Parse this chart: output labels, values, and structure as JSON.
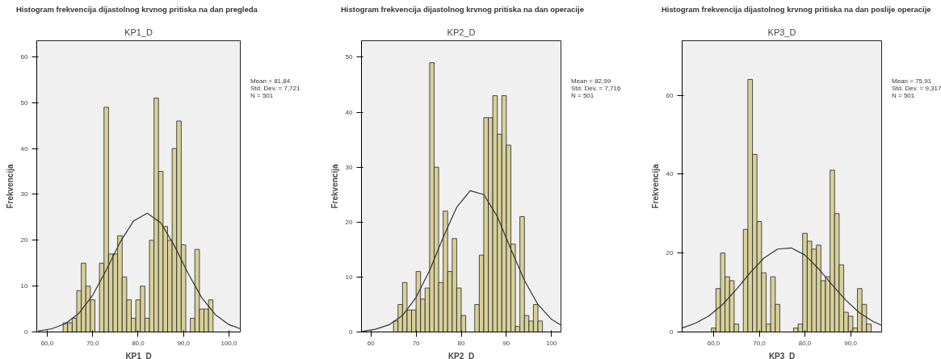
{
  "chart_data": [
    {
      "type": "histogram",
      "title": "Histogram frekvencija dijastolnog krvnog pritiska na dan pregleda",
      "subtitle": "KP1_D",
      "xlabel": "KP1_D",
      "ylabel": "Frekvencija",
      "annotations": [
        "Mean = 81,84",
        "Std. Dev. = 7,721",
        "N = 501"
      ],
      "xlim": [
        57.7,
        102.5
      ],
      "ylim": [
        0,
        63.5
      ],
      "xticks": [
        {
          "value": 60,
          "label": "60,0"
        },
        {
          "value": 70,
          "label": "70,0"
        },
        {
          "value": 80,
          "label": "80,0"
        },
        {
          "value": 90,
          "label": "90,0"
        },
        {
          "value": 100,
          "label": "100,0"
        }
      ],
      "yticks": [
        0,
        10,
        20,
        30,
        40,
        50,
        60
      ],
      "grid": false,
      "series": [
        {
          "color": "#d8d09a",
          "bins": [
            63.5,
            64.5,
            65.5,
            66.5,
            67.5,
            68.5,
            69.5,
            70.5,
            71.5,
            72.5,
            73.5,
            74.5,
            75.5,
            76.5,
            77.5,
            78.5,
            79.5,
            80.5,
            81.5,
            82.5,
            83.5,
            84.5,
            85.5,
            86.5,
            87.5,
            88.5,
            89.5,
            90.5,
            91.5,
            92.5,
            93.5,
            94.5,
            95.5,
            96.5
          ],
          "values": [
            2,
            2,
            3,
            9,
            15,
            10,
            7,
            0,
            15,
            49,
            17,
            17,
            21,
            12,
            7,
            3,
            7,
            10,
            3,
            20,
            51,
            35,
            23,
            20,
            40,
            46,
            19,
            0,
            3,
            18,
            5,
            5,
            7
          ]
        },
        {
          "type": "line",
          "color": "#333333",
          "x": [
            58,
            61,
            64,
            67,
            70,
            73,
            76,
            79,
            82,
            85,
            88,
            91,
            94,
            97,
            100,
            102.5
          ],
          "values": [
            0.2,
            0.7,
            1.8,
            4.1,
            8.0,
            13.5,
            19.5,
            24.2,
            25.9,
            23.8,
            18.8,
            12.8,
            7.5,
            3.8,
            1.6,
            0.7
          ]
        }
      ]
    },
    {
      "type": "histogram",
      "title": "Histogram frekvencija dijastolnog krvnog pritiska na dan operacije",
      "subtitle": "KP2_D",
      "xlabel": "KP2_D",
      "ylabel": "Frekvencija",
      "annotations": [
        "Mean = 82,99",
        "Std. Dev. = 7,716",
        "N = 501"
      ],
      "xlim": [
        57.9,
        102.1
      ],
      "ylim": [
        0,
        53
      ],
      "xticks": [
        60,
        70,
        80,
        90,
        100
      ],
      "yticks": [
        0,
        10,
        20,
        30,
        40,
        50
      ],
      "grid": false,
      "series": [
        {
          "color": "#d8d09a",
          "bins": [
            65,
            66,
            67,
            68,
            69,
            70,
            71,
            72,
            73,
            74,
            75,
            76,
            77,
            78,
            79,
            80,
            81,
            82,
            83,
            84,
            85,
            86,
            87,
            88,
            89,
            90,
            91,
            92,
            93,
            94,
            95,
            96,
            97,
            98
          ],
          "values": [
            2,
            5,
            9,
            4,
            4,
            11,
            6,
            8,
            49,
            30,
            9,
            22,
            11,
            17,
            8,
            3,
            0,
            0,
            5,
            14,
            39,
            39,
            43,
            36,
            43,
            34,
            16,
            1,
            21,
            3,
            2,
            5,
            2
          ]
        },
        {
          "type": "line",
          "color": "#333333",
          "x": [
            58,
            61,
            64,
            67,
            70,
            73,
            76,
            79,
            82,
            85,
            88,
            91,
            94,
            97,
            100,
            102
          ],
          "values": [
            0.1,
            0.5,
            1.3,
            3.0,
            6.3,
            11.2,
            17.2,
            22.7,
            25.7,
            25.0,
            21.0,
            15.1,
            9.4,
            5.0,
            2.3,
            1.3
          ]
        }
      ]
    },
    {
      "type": "histogram",
      "title": "Histogram frekvencija dijastolnog krvnog pritiska na dan poslije operacije",
      "subtitle": "KP3_D",
      "xlabel": "KP3_D",
      "ylabel": "Frekvencija",
      "annotations": [
        "Mean = 75,91",
        "Std. Dev. = 9,317",
        "N = 501"
      ],
      "xlim": [
        53.1,
        96.8
      ],
      "ylim": [
        0,
        73.8
      ],
      "xticks": [
        {
          "value": 60,
          "label": "60,0"
        },
        {
          "value": 70,
          "label": "70,0"
        },
        {
          "value": 80,
          "label": "80,0"
        },
        {
          "value": 90,
          "label": "90,0"
        }
      ],
      "yticks": [
        0,
        20,
        40,
        60
      ],
      "grid": false,
      "series": [
        {
          "color": "#d8d09a",
          "bins": [
            59.5,
            60.5,
            61.5,
            62.5,
            63.5,
            64.5,
            65.5,
            66.5,
            67.5,
            68.5,
            69.5,
            70.5,
            71.5,
            72.5,
            73.5,
            74.5,
            75.5,
            76.5,
            77.5,
            78.5,
            79.5,
            80.5,
            81.5,
            82.5,
            83.5,
            84.5,
            85.5,
            86.5,
            87.5,
            88.5,
            89.5,
            90.5,
            91.5,
            92.5,
            93.5,
            94.5
          ],
          "values": [
            1,
            11,
            20,
            14,
            13,
            2,
            0,
            26,
            64,
            45,
            28,
            15,
            2,
            14,
            7,
            0,
            0,
            0,
            1,
            2,
            25,
            23,
            21,
            22,
            13,
            14,
            41,
            30,
            17,
            5,
            4,
            1,
            11,
            7,
            2
          ]
        },
        {
          "type": "line",
          "color": "#333333",
          "x": [
            53.1,
            56,
            59,
            62,
            65,
            68,
            71,
            74,
            77,
            80,
            83,
            86,
            89,
            92,
            95,
            96.8
          ],
          "values": [
            1.0,
            2.2,
            4.1,
            7.0,
            10.8,
            15.0,
            18.7,
            21.0,
            21.3,
            19.5,
            16.0,
            11.9,
            8.0,
            4.8,
            2.6,
            1.7
          ]
        }
      ]
    }
  ]
}
